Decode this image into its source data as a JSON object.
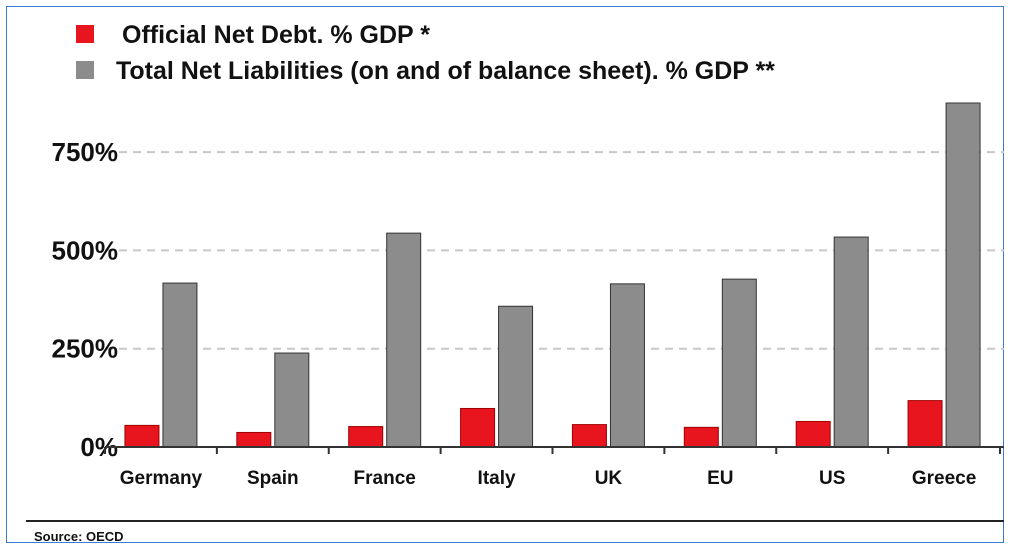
{
  "chart_data": {
    "type": "bar",
    "title": "",
    "xlabel": "",
    "ylabel": "",
    "categories": [
      "Germany",
      "Spain",
      "France",
      "Italy",
      "UK",
      "EU",
      "US",
      "Greece"
    ],
    "series": [
      {
        "name": "Official Net Debt. % GDP  *",
        "color": "#e8141e",
        "values": [
          55,
          37,
          52,
          98,
          57,
          50,
          65,
          118
        ]
      },
      {
        "name": "Total Net Liabilities (on and of balance sheet). % GDP **",
        "color": "#8c8c8c",
        "values": [
          417,
          239,
          544,
          358,
          415,
          427,
          534,
          875
        ]
      }
    ],
    "ylim": [
      0,
      875
    ],
    "yticks": [
      {
        "value": 0,
        "label": "0%"
      },
      {
        "value": 250,
        "label": "250%"
      },
      {
        "value": 500,
        "label": "500%"
      },
      {
        "value": 750,
        "label": "750%"
      }
    ],
    "grid": true,
    "legend_position": "top-left"
  },
  "source": "Source: OECD"
}
